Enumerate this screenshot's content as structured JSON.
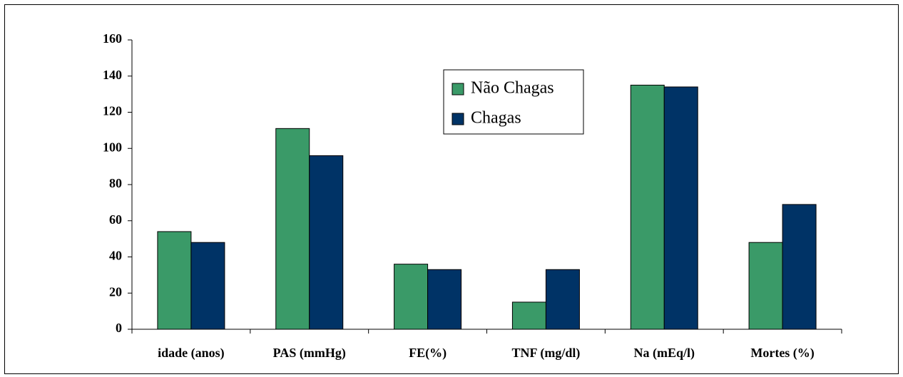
{
  "chart_data": {
    "type": "bar",
    "categories": [
      "idade (anos)",
      "PAS (mmHg)",
      "FE(%)",
      "TNF (mg/dl)",
      "Na (mEq/l)",
      "Mortes (%)"
    ],
    "series": [
      {
        "name": "Não Chagas",
        "color": "#3a9a68",
        "values": [
          54,
          111,
          36,
          15,
          135,
          48
        ]
      },
      {
        "name": "Chagas",
        "color": "#003366",
        "values": [
          48,
          96,
          33,
          33,
          134,
          69
        ]
      }
    ],
    "ylim": [
      0,
      160
    ],
    "yticks": [
      0,
      20,
      40,
      60,
      80,
      100,
      120,
      140,
      160
    ],
    "grid": false,
    "legend": "top-center"
  }
}
